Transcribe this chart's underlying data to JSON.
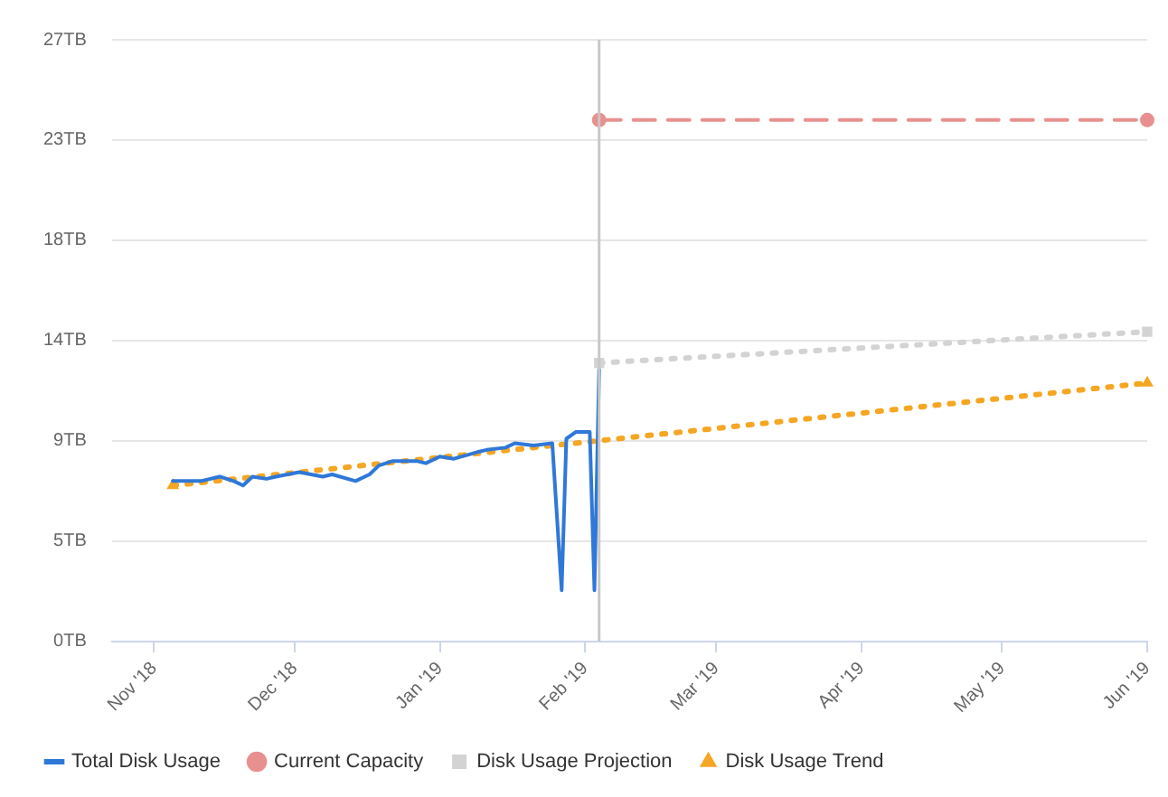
{
  "chart_data": {
    "type": "line",
    "xlim": [
      "2018-10-23",
      "2019-06-01"
    ],
    "xticks": [
      {
        "value": "2018-11-01",
        "label": "Nov '18"
      },
      {
        "value": "2018-12-01",
        "label": "Dec '18"
      },
      {
        "value": "2019-01-01",
        "label": "Jan '19"
      },
      {
        "value": "2019-02-01",
        "label": "Feb '19"
      },
      {
        "value": "2019-03-01",
        "label": "Mar '19"
      },
      {
        "value": "2019-04-01",
        "label": "Apr '19"
      },
      {
        "value": "2019-05-01",
        "label": "May '19"
      },
      {
        "value": "2019-06-01",
        "label": "Jun '19"
      }
    ],
    "ylim": [
      0,
      27
    ],
    "yticks": [
      {
        "value": 0,
        "label": "0TB"
      },
      {
        "value": 4.5,
        "label": "5TB"
      },
      {
        "value": 9,
        "label": "9TB"
      },
      {
        "value": 13.5,
        "label": "14TB"
      },
      {
        "value": 18,
        "label": "18TB"
      },
      {
        "value": 22.5,
        "label": "23TB"
      },
      {
        "value": 27,
        "label": "27TB"
      }
    ],
    "grid": "y",
    "legend": "bottom left",
    "series": [
      {
        "name": "Total Disk Usage",
        "color": "#2f78d8",
        "marker": "none",
        "line_style": "solid",
        "x": [
          "2018-11-05",
          "2018-11-11",
          "2018-11-15",
          "2018-11-18",
          "2018-11-20",
          "2018-11-22",
          "2018-11-25",
          "2018-11-27",
          "2018-12-02",
          "2018-12-07",
          "2018-12-09",
          "2018-12-14",
          "2018-12-17",
          "2018-12-19",
          "2018-12-22",
          "2018-12-27",
          "2018-12-29",
          "2019-01-01",
          "2019-01-04",
          "2019-01-09",
          "2019-01-11",
          "2019-01-15",
          "2019-01-17",
          "2019-01-21",
          "2019-01-25",
          "2019-01-27",
          "2019-01-28",
          "2019-01-30",
          "2019-02-02",
          "2019-02-03",
          "2019-02-04"
        ],
        "values": [
          7.2,
          7.2,
          7.4,
          7.2,
          7.0,
          7.4,
          7.3,
          7.4,
          7.6,
          7.4,
          7.5,
          7.2,
          7.5,
          7.9,
          8.1,
          8.1,
          8.0,
          8.3,
          8.2,
          8.5,
          8.6,
          8.7,
          8.9,
          8.8,
          8.9,
          2.3,
          9.1,
          9.4,
          9.4,
          2.3,
          12.2
        ]
      },
      {
        "name": "Current Capacity",
        "color": "#e8908f",
        "marker": "circle",
        "line_style": "dashed",
        "x": [
          "2019-02-04",
          "2019-06-01"
        ],
        "values": [
          23.4,
          23.4
        ]
      },
      {
        "name": "Disk Usage Projection",
        "color": "#d3d3d3",
        "marker": "square",
        "line_style": "dotted",
        "x": [
          "2019-02-04",
          "2019-06-01"
        ],
        "values": [
          12.5,
          13.9
        ]
      },
      {
        "name": "Disk Usage Trend",
        "color": "#f5a623",
        "marker": "triangle",
        "line_style": "dotted",
        "x": [
          "2018-11-05",
          "2019-06-01"
        ],
        "values": [
          7.0,
          11.6
        ]
      }
    ],
    "ref_lines": [
      {
        "axis": "x",
        "value": "2019-02-04",
        "color": "#c8c8c8",
        "line_style": "solid"
      }
    ]
  }
}
